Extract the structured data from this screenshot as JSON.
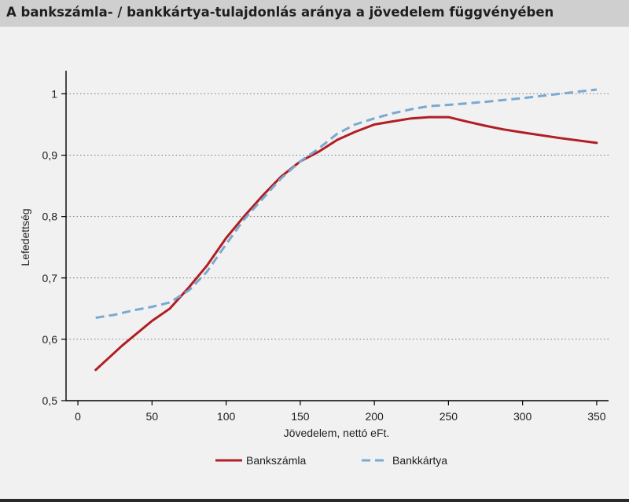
{
  "header": {
    "title": "A bankszámla- / bankkártya-tulajdonlás aránya a jövedelem függvényében"
  },
  "chart_data": {
    "type": "line",
    "title": "A bankszámla- / bankkártya-tulajdonlás aránya a jövedelem függvényében",
    "xlabel": "Jövedelem, nettó eFt.",
    "ylabel": "Lefedettség",
    "xlim": [
      -8,
      358
    ],
    "ylim": [
      0.5,
      1.03
    ],
    "xticks": [
      0,
      50,
      100,
      150,
      200,
      250,
      300,
      350
    ],
    "xtick_labels": [
      "0",
      "50",
      "100",
      "150",
      "200",
      "250",
      "300",
      "350"
    ],
    "yticks": [
      0.5,
      0.6,
      0.7,
      0.8,
      0.9,
      1.0
    ],
    "ytick_labels": [
      "0,5",
      "0,6",
      "0,7",
      "0,8",
      "0,9",
      "1"
    ],
    "grid": "horizontal-dotted",
    "legend": "bottom",
    "series": [
      {
        "name": "Bankszámla",
        "color": "#b11e23",
        "style": "solid",
        "points": [
          [
            12,
            0.55
          ],
          [
            30,
            0.59
          ],
          [
            50,
            0.63
          ],
          [
            62,
            0.65
          ],
          [
            75,
            0.685
          ],
          [
            87,
            0.72
          ],
          [
            100,
            0.765
          ],
          [
            112,
            0.8
          ],
          [
            125,
            0.835
          ],
          [
            137,
            0.865
          ],
          [
            150,
            0.89
          ],
          [
            162,
            0.905
          ],
          [
            175,
            0.925
          ],
          [
            187,
            0.938
          ],
          [
            200,
            0.95
          ],
          [
            212,
            0.955
          ],
          [
            225,
            0.96
          ],
          [
            237,
            0.962
          ],
          [
            250,
            0.962
          ],
          [
            262,
            0.955
          ],
          [
            275,
            0.948
          ],
          [
            287,
            0.942
          ],
          [
            300,
            0.937
          ],
          [
            325,
            0.928
          ],
          [
            350,
            0.92
          ]
        ]
      },
      {
        "name": "Bankkártya",
        "color": "#7aa9d1",
        "style": "dashed",
        "points": [
          [
            12,
            0.635
          ],
          [
            25,
            0.64
          ],
          [
            37,
            0.647
          ],
          [
            50,
            0.653
          ],
          [
            62,
            0.66
          ],
          [
            75,
            0.68
          ],
          [
            87,
            0.71
          ],
          [
            100,
            0.755
          ],
          [
            112,
            0.795
          ],
          [
            125,
            0.83
          ],
          [
            137,
            0.862
          ],
          [
            150,
            0.89
          ],
          [
            162,
            0.91
          ],
          [
            175,
            0.935
          ],
          [
            187,
            0.95
          ],
          [
            200,
            0.96
          ],
          [
            212,
            0.968
          ],
          [
            225,
            0.975
          ],
          [
            237,
            0.98
          ],
          [
            250,
            0.982
          ],
          [
            275,
            0.987
          ],
          [
            300,
            0.993
          ],
          [
            325,
            1.0
          ],
          [
            350,
            1.007
          ]
        ]
      }
    ]
  }
}
